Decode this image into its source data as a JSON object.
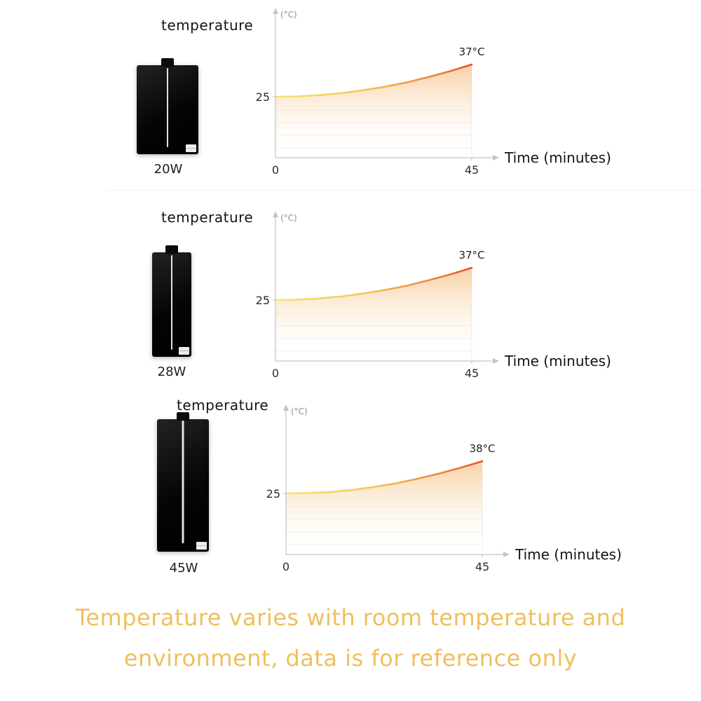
{
  "chart_data": [
    {
      "type": "line",
      "title": "temperature",
      "xlabel": "Time (minutes)",
      "ylabel": "(°C)",
      "x": [
        0,
        5,
        10,
        15,
        20,
        25,
        30,
        35,
        40,
        45
      ],
      "series": [
        {
          "name": "20W",
          "values": [
            25,
            25.1,
            25.6,
            26.3,
            27.4,
            28.7,
            30.3,
            32.3,
            34.5,
            37
          ]
        }
      ],
      "xlim": [
        0,
        45
      ],
      "ylim": [
        20,
        40
      ],
      "start_temp": 25,
      "end_temp": 37,
      "annotation": "37°C",
      "y_tick_label": "25",
      "x_tick_labels": [
        "0",
        "45"
      ],
      "grid": "faint-horizontal",
      "legend": "none",
      "line_gradient": [
        "#f6e27a",
        "#f3c94e",
        "#ef8f3c",
        "#e8512a"
      ]
    },
    {
      "type": "line",
      "title": "temperature",
      "xlabel": "Time (minutes)",
      "ylabel": "(°C)",
      "x": [
        0,
        5,
        10,
        15,
        20,
        25,
        30,
        35,
        40,
        45
      ],
      "series": [
        {
          "name": "28W",
          "values": [
            25,
            25.1,
            25.6,
            26.3,
            27.4,
            28.7,
            30.3,
            32.3,
            34.5,
            37
          ]
        }
      ],
      "xlim": [
        0,
        45
      ],
      "ylim": [
        20,
        40
      ],
      "start_temp": 25,
      "end_temp": 37,
      "annotation": "37°C",
      "y_tick_label": "25",
      "x_tick_labels": [
        "0",
        "45"
      ],
      "grid": "faint-horizontal",
      "legend": "none",
      "line_gradient": [
        "#f6e27a",
        "#f3c94e",
        "#ef8f3c",
        "#e8512a"
      ]
    },
    {
      "type": "line",
      "title": "temperature",
      "xlabel": "Time (minutes)",
      "ylabel": "(°C)",
      "x": [
        0,
        5,
        10,
        15,
        20,
        25,
        30,
        35,
        40,
        45
      ],
      "series": [
        {
          "name": "45W",
          "values": [
            25,
            25.2,
            25.6,
            26.4,
            27.6,
            29.0,
            30.9,
            33.0,
            35.4,
            38
          ]
        }
      ],
      "xlim": [
        0,
        45
      ],
      "ylim": [
        20,
        40
      ],
      "start_temp": 25,
      "end_temp": 38,
      "annotation": "38°C",
      "y_tick_label": "25",
      "x_tick_labels": [
        "0",
        "45"
      ],
      "grid": "faint-horizontal",
      "legend": "none",
      "line_gradient": [
        "#f6e27a",
        "#f3c94e",
        "#ef8f3c",
        "#e8512a"
      ]
    }
  ],
  "footer": {
    "line1": "Temperature varies with room temperature and",
    "line2": "environment, data is for reference only",
    "color": "#f0bf5c"
  },
  "colors": {
    "axis": "#c4c4c4",
    "grid": "#f0f0f0",
    "curve_start": "#f6e27a",
    "curve_end": "#e8512a"
  }
}
